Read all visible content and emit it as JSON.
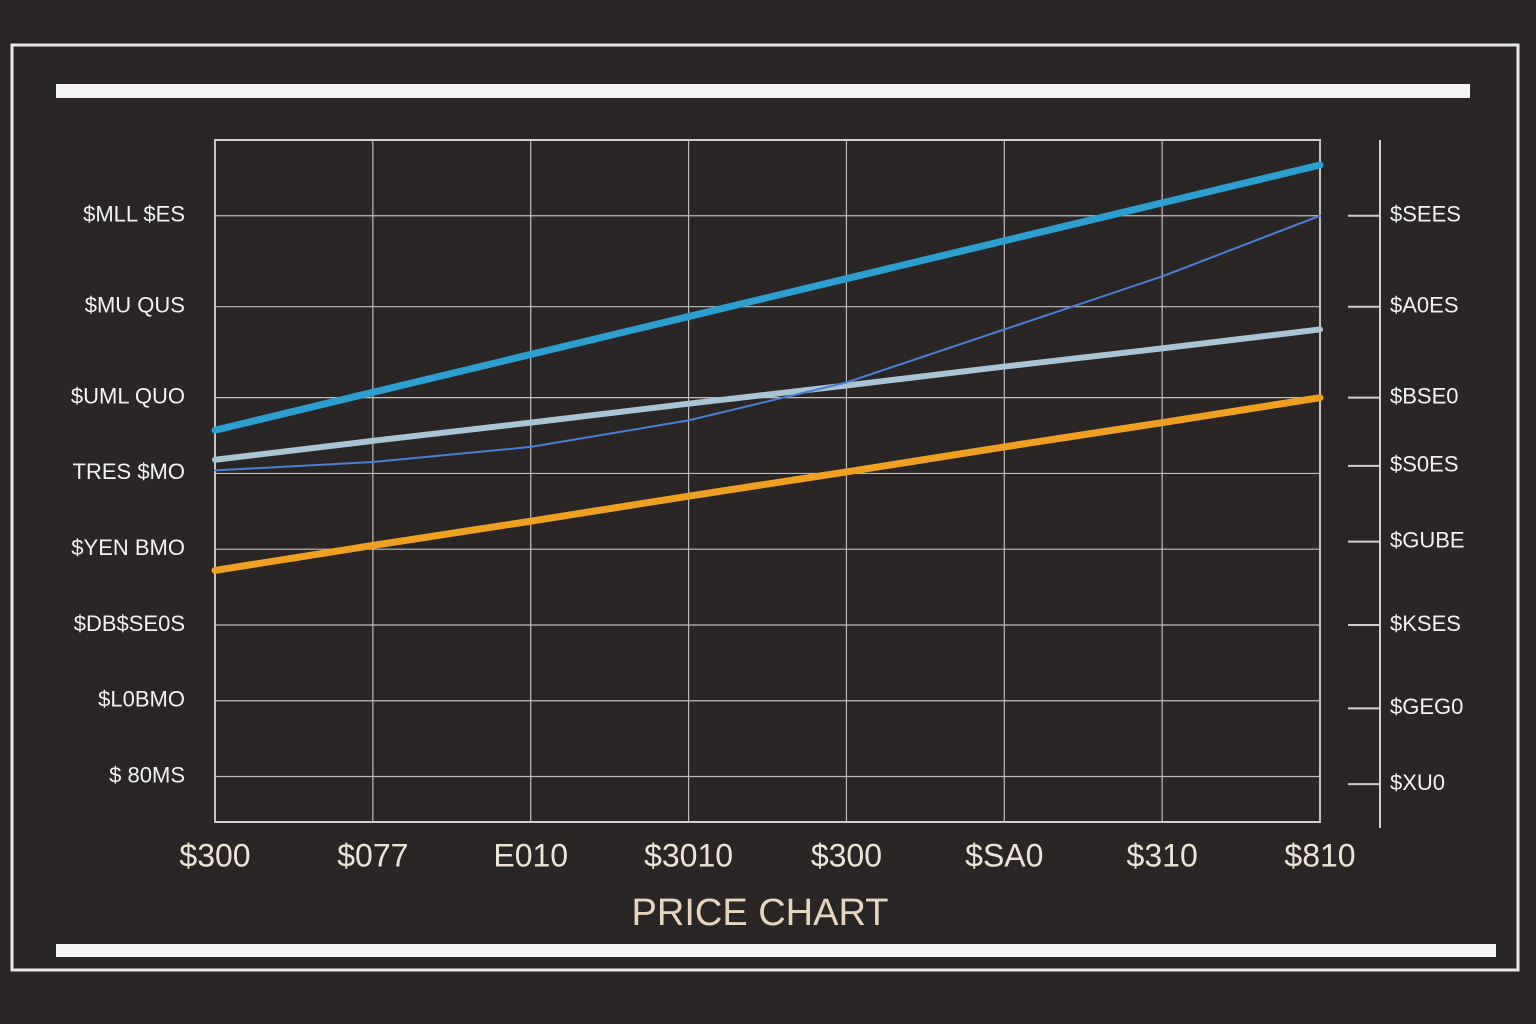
{
  "chart_data": {
    "type": "line",
    "title": "PRICE CHART",
    "categories": [
      "$300",
      "$077",
      "E010",
      "$3010",
      "$300",
      "$SA0",
      "$310",
      "$810"
    ],
    "ylim": [
      0,
      9
    ],
    "yticks": [
      {
        "value": 0.6,
        "label": "$ 80MS"
      },
      {
        "value": 1.6,
        "label": "$L0BMO"
      },
      {
        "value": 2.6,
        "label": "$DB$SE0S"
      },
      {
        "value": 3.6,
        "label": "$YEN BMO"
      },
      {
        "value": 4.6,
        "label": "TRES $MO"
      },
      {
        "value": 5.6,
        "label": "$UML QUO"
      },
      {
        "value": 6.8,
        "label": "$MU QUS"
      },
      {
        "value": 8,
        "label": "$MLL $ES"
      }
    ],
    "y2lim": [
      0,
      9
    ],
    "y2ticks": [
      {
        "value": 0.5,
        "label": "$XU0"
      },
      {
        "value": 1.5,
        "label": "$GEG0"
      },
      {
        "value": 2.6,
        "label": "$KSES"
      },
      {
        "value": 3.7,
        "label": "$GUBE"
      },
      {
        "value": 4.7,
        "label": "$S0ES"
      },
      {
        "value": 5.6,
        "label": "$BSE0"
      },
      {
        "value": 6.8,
        "label": "$A0ES"
      },
      {
        "value": 8,
        "label": "$SEES"
      }
    ],
    "grid": true,
    "series": [
      {
        "color": "#2a9fd0",
        "values": [
          5.17,
          5.67,
          6.17,
          6.67,
          7.17,
          7.67,
          8.17,
          8.67
        ]
      },
      {
        "color": "#a9c4d4",
        "values": [
          4.78,
          5.03,
          5.27,
          5.52,
          5.76,
          6.01,
          6.25,
          6.5
        ]
      },
      {
        "color": "#4a7fd8",
        "values": [
          4.64,
          4.75,
          4.95,
          5.3,
          5.8,
          6.5,
          7.2,
          8.0
        ]
      },
      {
        "color": "#f0a020",
        "values": [
          3.32,
          3.65,
          3.97,
          4.3,
          4.62,
          4.95,
          5.27,
          5.6
        ]
      }
    ]
  }
}
